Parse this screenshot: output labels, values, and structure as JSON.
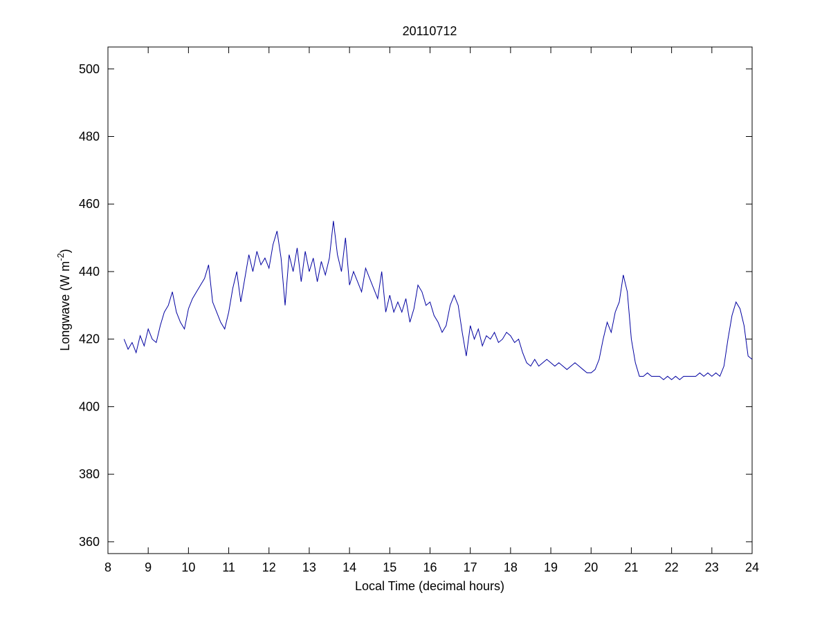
{
  "chart_data": {
    "type": "line",
    "title": "20110712",
    "x_label": "Local Time (decimal hours)",
    "y_label": {
      "text": "Longwave (W m",
      "superscript": "-2",
      "suffix": ")"
    },
    "color": "#0000a0",
    "xlim": [
      8,
      24
    ],
    "xticks": [
      8,
      9,
      10,
      11,
      12,
      13,
      14,
      15,
      16,
      17,
      18,
      19,
      20,
      21,
      22,
      23,
      24
    ],
    "ylim": [
      356.5,
      506.5
    ],
    "yticks": [
      360,
      380,
      400,
      420,
      440,
      460,
      480,
      500
    ],
    "x": [
      8.4,
      8.5,
      8.6,
      8.7,
      8.8,
      8.9,
      9.0,
      9.1,
      9.2,
      9.3,
      9.4,
      9.5,
      9.6,
      9.7,
      9.8,
      9.9,
      10.0,
      10.1,
      10.2,
      10.3,
      10.4,
      10.5,
      10.6,
      10.7,
      10.8,
      10.9,
      11.0,
      11.1,
      11.2,
      11.3,
      11.4,
      11.5,
      11.6,
      11.7,
      11.8,
      11.9,
      12.0,
      12.1,
      12.2,
      12.3,
      12.4,
      12.5,
      12.6,
      12.7,
      12.8,
      12.9,
      13.0,
      13.1,
      13.2,
      13.3,
      13.4,
      13.5,
      13.6,
      13.7,
      13.8,
      13.9,
      14.0,
      14.1,
      14.2,
      14.3,
      14.4,
      14.5,
      14.6,
      14.7,
      14.8,
      14.9,
      15.0,
      15.1,
      15.2,
      15.3,
      15.4,
      15.5,
      15.6,
      15.7,
      15.8,
      15.9,
      16.0,
      16.1,
      16.2,
      16.3,
      16.4,
      16.5,
      16.6,
      16.7,
      16.8,
      16.9,
      17.0,
      17.1,
      17.2,
      17.3,
      17.4,
      17.5,
      17.6,
      17.7,
      17.8,
      17.9,
      18.0,
      18.1,
      18.2,
      18.3,
      18.4,
      18.5,
      18.6,
      18.7,
      18.8,
      18.9,
      19.0,
      19.1,
      19.2,
      19.3,
      19.4,
      19.5,
      19.6,
      19.7,
      19.8,
      19.9,
      20.0,
      20.1,
      20.2,
      20.3,
      20.4,
      20.5,
      20.6,
      20.7,
      20.8,
      20.9,
      21.0,
      21.1,
      21.2,
      21.3,
      21.4,
      21.5,
      21.6,
      21.7,
      21.8,
      21.9,
      22.0,
      22.1,
      22.2,
      22.3,
      22.4,
      22.5,
      22.6,
      22.7,
      22.8,
      22.9,
      23.0,
      23.1,
      23.2,
      23.3,
      23.4,
      23.5,
      23.6,
      23.7,
      23.8,
      23.9,
      24.0
    ],
    "values": [
      420,
      417,
      419,
      416,
      421,
      418,
      423,
      420,
      419,
      424,
      428,
      430,
      434,
      428,
      425,
      423,
      429,
      432,
      434,
      436,
      438,
      442,
      431,
      428,
      425,
      423,
      428,
      435,
      440,
      431,
      438,
      445,
      440,
      446,
      442,
      444,
      441,
      448,
      452,
      444,
      430,
      445,
      440,
      447,
      437,
      446,
      440,
      444,
      437,
      443,
      439,
      444,
      455,
      445,
      440,
      450,
      436,
      440,
      437,
      434,
      441,
      438,
      435,
      432,
      440,
      428,
      433,
      428,
      431,
      428,
      432,
      425,
      429,
      436,
      434,
      430,
      431,
      427,
      425,
      422,
      424,
      430,
      433,
      430,
      422,
      415,
      424,
      420,
      423,
      418,
      421,
      420,
      422,
      419,
      420,
      422,
      421,
      419,
      420,
      416,
      413,
      412,
      414,
      412,
      413,
      414,
      413,
      412,
      413,
      412,
      411,
      412,
      413,
      412,
      411,
      410,
      410,
      411,
      414,
      420,
      425,
      422,
      428,
      431,
      439,
      434,
      420,
      413,
      409,
      409,
      410,
      409,
      409,
      409,
      408,
      409,
      408,
      409,
      408,
      409,
      409,
      409,
      409,
      410,
      409,
      410,
      409,
      410,
      409,
      412,
      420,
      427,
      431,
      429,
      424,
      415,
      414
    ]
  }
}
